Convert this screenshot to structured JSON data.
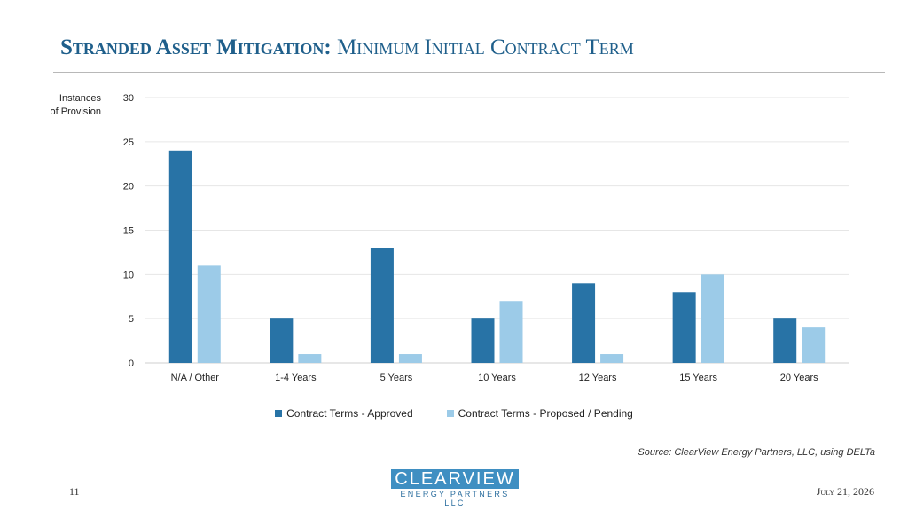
{
  "title": {
    "main": "Stranded Asset Mitigation",
    "sep": ": ",
    "sub": "Minimum Initial Contract Term"
  },
  "page_number": "11",
  "date": "July 21, 2026",
  "source": "Source: ClearView Energy Partners, LLC, using DELTa",
  "logo": {
    "name": "CLEARVIEW",
    "sub": "ENERGY PARTNERS LLC"
  },
  "colors": {
    "approved": "#2873a6",
    "proposed": "#9ccbe8",
    "title": "#1f5f8b"
  },
  "chart_data": {
    "type": "bar",
    "ylabel_line1": "Instances",
    "ylabel_line2": "of Provision",
    "xlabel": "",
    "ylim": [
      0,
      30
    ],
    "yticks": [
      0,
      5,
      10,
      15,
      20,
      25,
      30
    ],
    "grid": true,
    "legend_position": "bottom",
    "categories": [
      "N/A / Other",
      "1-4 Years",
      "5 Years",
      "10 Years",
      "12 Years",
      "15 Years",
      "20 Years"
    ],
    "series": [
      {
        "name": "Contract Terms - Approved",
        "values": [
          24,
          5,
          13,
          5,
          9,
          8,
          5
        ]
      },
      {
        "name": "Contract Terms - Proposed / Pending",
        "values": [
          11,
          1,
          1,
          7,
          1,
          10,
          4
        ]
      }
    ]
  }
}
